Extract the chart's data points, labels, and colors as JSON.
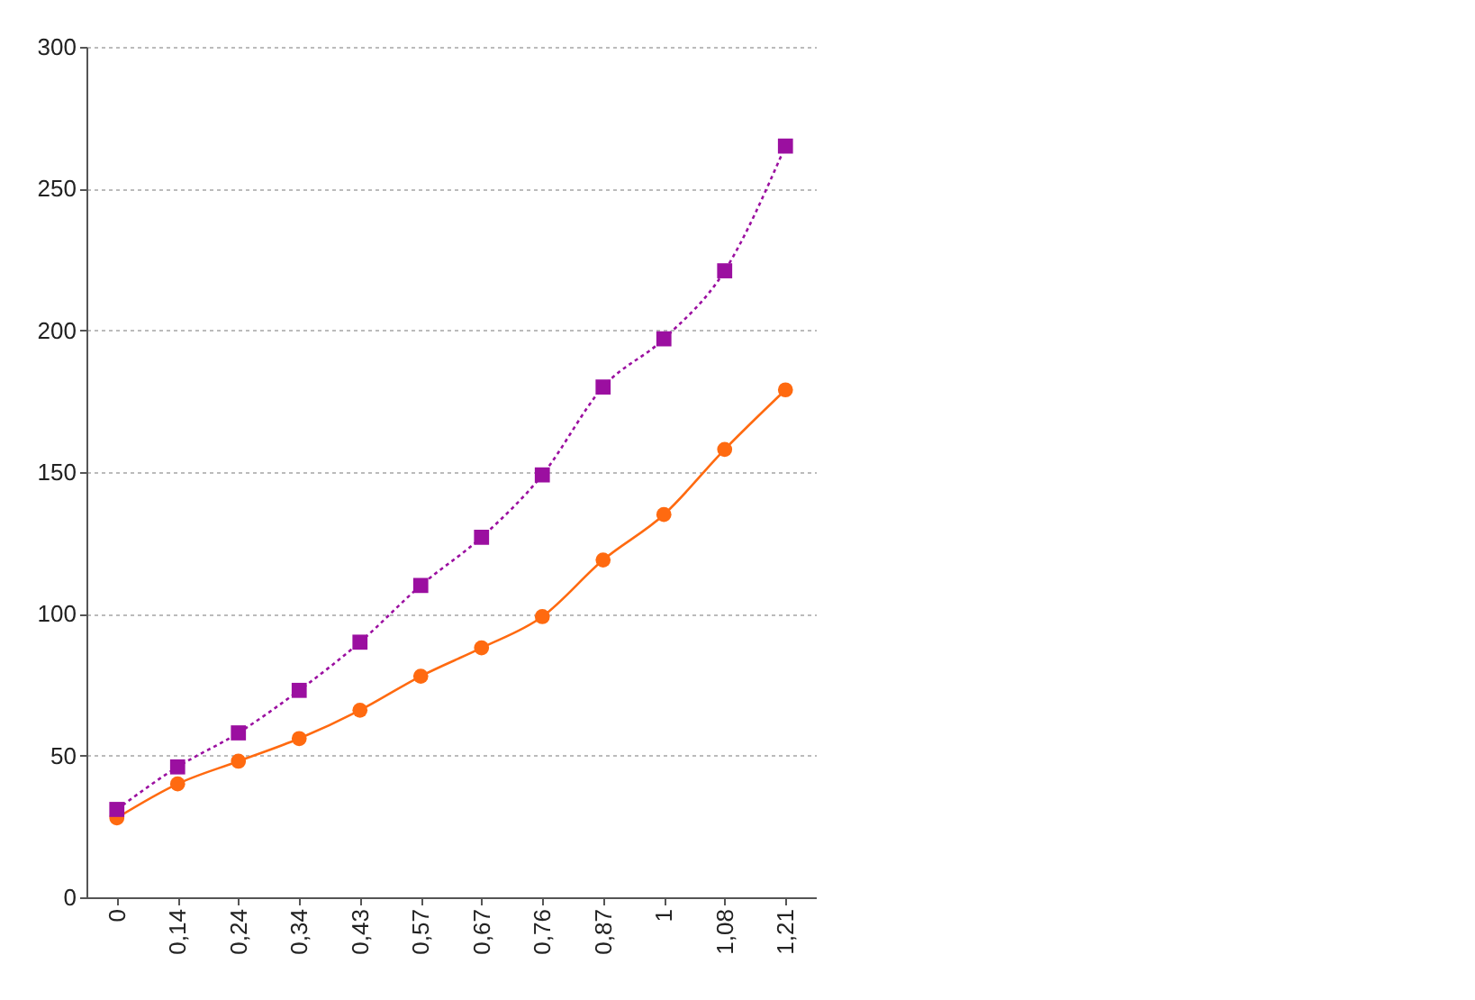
{
  "chart_data": {
    "type": "line",
    "categories": [
      "0",
      "0,14",
      "0,24",
      "0,34",
      "0,43",
      "0,57",
      "0,67",
      "0,76",
      "0,87",
      "1",
      "1,08",
      "1,21"
    ],
    "series": [
      {
        "color": "#ff6a10",
        "marker": "circle",
        "line_style": "solid",
        "values": [
          28,
          40,
          48,
          56,
          66,
          78,
          88,
          99,
          119,
          135,
          158,
          179
        ]
      },
      {
        "color": "#9b0fa0",
        "marker": "square",
        "line_style": "dotted",
        "values": [
          31,
          46,
          58,
          73,
          90,
          110,
          127,
          149,
          180,
          197,
          221,
          265
        ]
      }
    ],
    "ylim": [
      0,
      300
    ],
    "yticks": [
      0,
      50,
      100,
      150,
      200,
      250,
      300
    ],
    "grid": "y"
  }
}
